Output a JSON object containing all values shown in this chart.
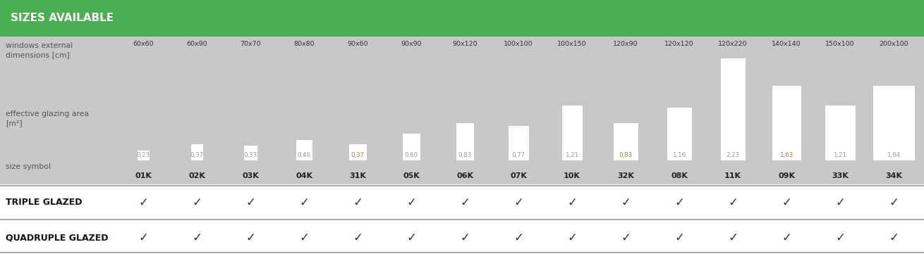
{
  "title": "SIZES AVAILABLE",
  "title_bg": "#4aaf50",
  "title_color": "#ffffff",
  "gray_bg": "#c8c8c8",
  "sizes": [
    "60x60",
    "60x90",
    "70x70",
    "80x80",
    "90x60",
    "90x90",
    "90x120",
    "100x100",
    "100x150",
    "120x90",
    "120x120",
    "120x220",
    "140x140",
    "150x100",
    "200x100"
  ],
  "glazing_values": [
    0.23,
    0.37,
    0.33,
    0.46,
    0.37,
    0.6,
    0.83,
    0.77,
    1.21,
    0.83,
    1.16,
    2.23,
    1.63,
    1.21,
    1.64
  ],
  "size_symbols": [
    "01K",
    "02K",
    "03K",
    "04K",
    "31K",
    "05K",
    "06K",
    "07K",
    "10K",
    "32K",
    "08K",
    "11K",
    "09K",
    "33K",
    "34K"
  ],
  "widths_cm": [
    60,
    60,
    70,
    80,
    90,
    90,
    90,
    100,
    100,
    120,
    120,
    120,
    140,
    150,
    200
  ],
  "heights_cm": [
    60,
    90,
    70,
    80,
    60,
    90,
    120,
    100,
    150,
    90,
    120,
    220,
    140,
    100,
    100
  ],
  "label_color": "#555555",
  "dim_label_color": "#333333",
  "bar_color": "#ffffff",
  "bar_edge_color": "#bbbbbb",
  "symbol_color": "#222222",
  "value_color": "#999999",
  "orange_value_indices": [
    4,
    9,
    12
  ],
  "orange_color": "#c07828",
  "check_color": "#333333",
  "divider_color": "#999999",
  "bold_label_color": "#111111"
}
